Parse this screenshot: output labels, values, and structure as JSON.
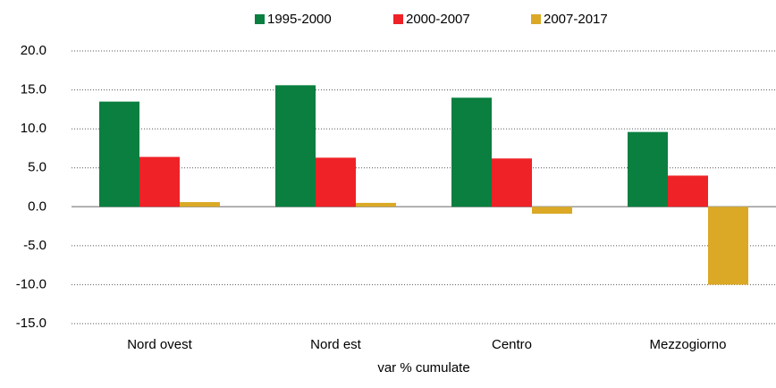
{
  "chart_data": {
    "type": "bar",
    "categories": [
      "Nord ovest",
      "Nord est",
      "Centro",
      "Mezzogiorno"
    ],
    "series": [
      {
        "name": "1995-2000",
        "color": "#0a7f3f",
        "values": [
          13.5,
          15.6,
          14.0,
          9.6
        ]
      },
      {
        "name": "2000-2007",
        "color": "#ee2227",
        "values": [
          6.4,
          6.3,
          6.2,
          4.0
        ]
      },
      {
        "name": "2007-2017",
        "color": "#dba926",
        "values": [
          0.6,
          0.5,
          -0.9,
          -10.0
        ]
      }
    ],
    "x_label": "var % cumulate",
    "ylim": [
      -15,
      20
    ],
    "yticks": [
      {
        "value": -15,
        "label": "-15.0"
      },
      {
        "value": -10,
        "label": "-10.0"
      },
      {
        "value": -5,
        "label": "-5.0"
      },
      {
        "value": 0,
        "label": "0.0"
      },
      {
        "value": 5,
        "label": "5.0"
      },
      {
        "value": 10,
        "label": "10.0"
      },
      {
        "value": 15,
        "label": "15.0"
      },
      {
        "value": 20,
        "label": "20.0"
      }
    ],
    "grid": true,
    "legend": "top"
  }
}
